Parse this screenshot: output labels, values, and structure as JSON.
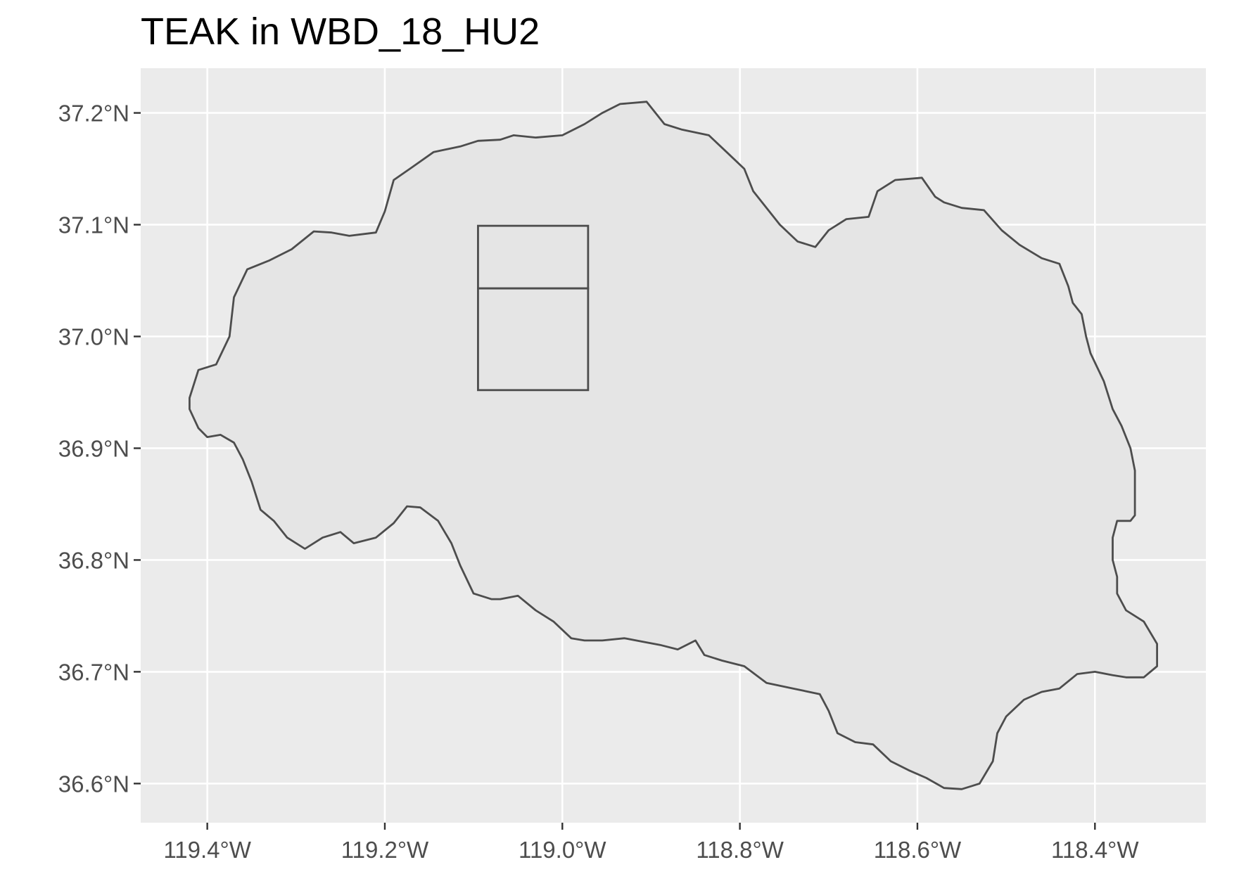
{
  "title": "TEAK in WBD_18_HU2",
  "chart_data": {
    "type": "map",
    "title": "TEAK in WBD_18_HU2",
    "xlabel": "",
    "ylabel": "",
    "xlim": [
      -119.475,
      -118.275
    ],
    "ylim": [
      36.565,
      37.24
    ],
    "grid": true,
    "x_ticks": [
      {
        "value": -119.4,
        "label": "119.4°W"
      },
      {
        "value": -119.2,
        "label": "119.2°W"
      },
      {
        "value": -119.0,
        "label": "119.0°W"
      },
      {
        "value": -118.8,
        "label": "118.8°W"
      },
      {
        "value": -118.6,
        "label": "118.6°W"
      },
      {
        "value": -118.4,
        "label": "118.4°W"
      }
    ],
    "y_ticks": [
      {
        "value": 37.2,
        "label": "37.2°N"
      },
      {
        "value": 37.1,
        "label": "37.1°N"
      },
      {
        "value": 37.0,
        "label": "37.0°N"
      },
      {
        "value": 36.9,
        "label": "36.9°N"
      },
      {
        "value": 36.8,
        "label": "36.8°N"
      },
      {
        "value": 36.7,
        "label": "36.7°N"
      },
      {
        "value": 36.6,
        "label": "36.6°N"
      }
    ],
    "colors": {
      "panel": "#ebebeb",
      "grid": "#ffffff",
      "fill": "#e5e5e5",
      "stroke": "#4d4d4d"
    },
    "watershed_outline": [
      [
        -119.42,
        36.945
      ],
      [
        -119.41,
        36.97
      ],
      [
        -119.39,
        36.975
      ],
      [
        -119.375,
        37.0
      ],
      [
        -119.37,
        37.035
      ],
      [
        -119.355,
        37.06
      ],
      [
        -119.33,
        37.068
      ],
      [
        -119.305,
        37.078
      ],
      [
        -119.28,
        37.094
      ],
      [
        -119.26,
        37.093
      ],
      [
        -119.24,
        37.09
      ],
      [
        -119.21,
        37.093
      ],
      [
        -119.2,
        37.112
      ],
      [
        -119.19,
        37.14
      ],
      [
        -119.17,
        37.151
      ],
      [
        -119.145,
        37.165
      ],
      [
        -119.115,
        37.17
      ],
      [
        -119.095,
        37.175
      ],
      [
        -119.07,
        37.176
      ],
      [
        -119.055,
        37.18
      ],
      [
        -119.03,
        37.178
      ],
      [
        -119.0,
        37.18
      ],
      [
        -118.975,
        37.19
      ],
      [
        -118.955,
        37.2
      ],
      [
        -118.935,
        37.208
      ],
      [
        -118.905,
        37.21
      ],
      [
        -118.885,
        37.19
      ],
      [
        -118.865,
        37.185
      ],
      [
        -118.835,
        37.18
      ],
      [
        -118.815,
        37.165
      ],
      [
        -118.795,
        37.15
      ],
      [
        -118.785,
        37.13
      ],
      [
        -118.775,
        37.12
      ],
      [
        -118.755,
        37.1
      ],
      [
        -118.735,
        37.085
      ],
      [
        -118.715,
        37.08
      ],
      [
        -118.7,
        37.095
      ],
      [
        -118.68,
        37.105
      ],
      [
        -118.655,
        37.107
      ],
      [
        -118.645,
        37.13
      ],
      [
        -118.625,
        37.14
      ],
      [
        -118.595,
        37.142
      ],
      [
        -118.58,
        37.125
      ],
      [
        -118.57,
        37.12
      ],
      [
        -118.55,
        37.115
      ],
      [
        -118.525,
        37.113
      ],
      [
        -118.505,
        37.095
      ],
      [
        -118.485,
        37.082
      ],
      [
        -118.46,
        37.07
      ],
      [
        -118.44,
        37.065
      ],
      [
        -118.43,
        37.045
      ],
      [
        -118.425,
        37.03
      ],
      [
        -118.415,
        37.02
      ],
      [
        -118.41,
        37.0
      ],
      [
        -118.405,
        36.985
      ],
      [
        -118.39,
        36.96
      ],
      [
        -118.38,
        36.935
      ],
      [
        -118.37,
        36.92
      ],
      [
        -118.36,
        36.9
      ],
      [
        -118.355,
        36.88
      ],
      [
        -118.355,
        36.86
      ],
      [
        -118.355,
        36.84
      ],
      [
        -118.36,
        36.835
      ],
      [
        -118.375,
        36.835
      ],
      [
        -118.38,
        36.82
      ],
      [
        -118.38,
        36.8
      ],
      [
        -118.375,
        36.785
      ],
      [
        -118.375,
        36.77
      ],
      [
        -118.365,
        36.755
      ],
      [
        -118.345,
        36.745
      ],
      [
        -118.33,
        36.725
      ],
      [
        -118.33,
        36.705
      ],
      [
        -118.345,
        36.695
      ],
      [
        -118.365,
        36.695
      ],
      [
        -118.38,
        36.697
      ],
      [
        -118.4,
        36.7
      ],
      [
        -118.42,
        36.698
      ],
      [
        -118.44,
        36.685
      ],
      [
        -118.46,
        36.682
      ],
      [
        -118.48,
        36.675
      ],
      [
        -118.5,
        36.66
      ],
      [
        -118.51,
        36.645
      ],
      [
        -118.515,
        36.62
      ],
      [
        -118.53,
        36.6
      ],
      [
        -118.55,
        36.595
      ],
      [
        -118.57,
        36.596
      ],
      [
        -118.59,
        36.605
      ],
      [
        -118.61,
        36.612
      ],
      [
        -118.63,
        36.62
      ],
      [
        -118.65,
        36.635
      ],
      [
        -118.67,
        36.637
      ],
      [
        -118.69,
        36.645
      ],
      [
        -118.7,
        36.665
      ],
      [
        -118.71,
        36.68
      ],
      [
        -118.74,
        36.685
      ],
      [
        -118.77,
        36.69
      ],
      [
        -118.795,
        36.705
      ],
      [
        -118.82,
        36.71
      ],
      [
        -118.84,
        36.715
      ],
      [
        -118.85,
        36.728
      ],
      [
        -118.87,
        36.72
      ],
      [
        -118.89,
        36.724
      ],
      [
        -118.91,
        36.727
      ],
      [
        -118.93,
        36.73
      ],
      [
        -118.955,
        36.728
      ],
      [
        -118.975,
        36.728
      ],
      [
        -118.99,
        36.73
      ],
      [
        -119.01,
        36.745
      ],
      [
        -119.03,
        36.755
      ],
      [
        -119.05,
        36.768
      ],
      [
        -119.07,
        36.765
      ],
      [
        -119.08,
        36.765
      ],
      [
        -119.1,
        36.77
      ],
      [
        -119.115,
        36.795
      ],
      [
        -119.125,
        36.815
      ],
      [
        -119.14,
        36.835
      ],
      [
        -119.16,
        36.847
      ],
      [
        -119.175,
        36.848
      ],
      [
        -119.19,
        36.833
      ],
      [
        -119.21,
        36.82
      ],
      [
        -119.235,
        36.815
      ],
      [
        -119.25,
        36.825
      ],
      [
        -119.27,
        36.82
      ],
      [
        -119.29,
        36.81
      ],
      [
        -119.31,
        36.82
      ],
      [
        -119.325,
        36.835
      ],
      [
        -119.34,
        36.845
      ],
      [
        -119.35,
        36.87
      ],
      [
        -119.36,
        36.89
      ],
      [
        -119.37,
        36.905
      ],
      [
        -119.385,
        36.912
      ],
      [
        -119.4,
        36.91
      ],
      [
        -119.41,
        36.918
      ],
      [
        -119.42,
        36.935
      ],
      [
        -119.42,
        36.945
      ]
    ],
    "site_boxes": [
      {
        "xmin": -119.095,
        "xmax": -118.971,
        "ymin": 37.043,
        "ymax": 37.099
      },
      {
        "xmin": -119.095,
        "xmax": -118.971,
        "ymin": 36.952,
        "ymax": 37.043
      }
    ]
  }
}
